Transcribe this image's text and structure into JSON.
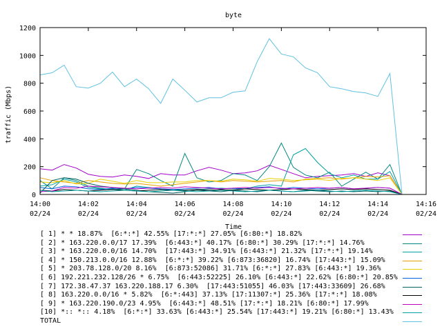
{
  "chart_data": {
    "type": "line",
    "title": "byte",
    "xlabel": "Time",
    "ylabel": "traffic (Mbps)",
    "ylim": [
      0,
      1200
    ],
    "yticks": [
      "0",
      "200",
      "400",
      "600",
      "800",
      "1000",
      "1200"
    ],
    "xlim": [
      "14:00",
      "14:16"
    ],
    "xticks": [
      {
        "time": "14:00",
        "date": "02/24"
      },
      {
        "time": "14:02",
        "date": "02/24"
      },
      {
        "time": "14:04",
        "date": "02/24"
      },
      {
        "time": "14:06",
        "date": "02/24"
      },
      {
        "time": "14:08",
        "date": "02/24"
      },
      {
        "time": "14:10",
        "date": "02/24"
      },
      {
        "time": "14:12",
        "date": "02/24"
      },
      {
        "time": "14:14",
        "date": "02/24"
      },
      {
        "time": "14:16",
        "date": "02/24"
      }
    ],
    "x": [
      "14:00",
      "14:00:30",
      "14:01",
      "14:01:30",
      "14:02",
      "14:02:30",
      "14:03",
      "14:03:30",
      "14:04",
      "14:04:30",
      "14:05",
      "14:05:30",
      "14:06",
      "14:06:30",
      "14:07",
      "14:07:30",
      "14:08",
      "14:08:30",
      "14:09",
      "14:09:30",
      "14:10",
      "14:10:30",
      "14:11",
      "14:11:30",
      "14:12",
      "14:12:30",
      "14:13",
      "14:13:30",
      "14:14",
      "14:14:30",
      "14:15"
    ],
    "grid": false,
    "legend_position": "bottom",
    "series": [
      {
        "name": "[ 1] * * 18.87%  [6:*:*] 42.55% [17:*:*] 27.05% [6:80:*] 18.82%",
        "color": "#a000c8",
        "values": [
          185,
          175,
          215,
          190,
          145,
          130,
          125,
          140,
          130,
          115,
          150,
          140,
          140,
          170,
          195,
          175,
          150,
          155,
          170,
          210,
          180,
          150,
          120,
          130,
          135,
          140,
          150,
          130,
          155,
          135,
          0
        ]
      },
      {
        "name": "[ 2] * 163.220.0.0/17 17.39%  [6:443:*] 40.17% [6:80:*] 30.29% [17:*:*] 14.76%",
        "color": "#00887e",
        "values": [
          100,
          40,
          120,
          100,
          60,
          45,
          35,
          40,
          180,
          150,
          100,
          60,
          295,
          120,
          90,
          100,
          150,
          140,
          100,
          200,
          370,
          195,
          140,
          120,
          160,
          60,
          110,
          160,
          110,
          215,
          0
        ]
      },
      {
        "name": "[ 3] * 163.220.0.0/16 14.70%  [17:443:*] 34.91% [6:443:*] 21.32% [17:*:*] 19.14%",
        "color": "#00a0a0",
        "values": [
          60,
          70,
          110,
          90,
          50,
          40,
          40,
          30,
          60,
          50,
          40,
          35,
          30,
          35,
          40,
          45,
          40,
          40,
          60,
          70,
          60,
          285,
          330,
          230,
          150,
          120,
          140,
          110,
          110,
          165,
          0
        ]
      },
      {
        "name": "[ 4] * 150.213.0.0/16 12.88%  [6:*:*] 39.22% [6:873:36820] 16.74% [17:443:*] 15.09%",
        "color": "#e8a000",
        "values": [
          120,
          100,
          90,
          80,
          100,
          90,
          80,
          75,
          80,
          70,
          60,
          70,
          80,
          90,
          100,
          90,
          100,
          95,
          90,
          95,
          100,
          90,
          110,
          115,
          120,
          110,
          120,
          130,
          125,
          135,
          0
        ]
      },
      {
        "name": "[ 5] * 203.78.128.0/20 8.16%  [6:873:52086] 31.71% [6:*:*] 27.83% [6:443:*] 19.36%",
        "color": "#e8d000",
        "values": [
          90,
          85,
          100,
          75,
          80,
          110,
          95,
          80,
          100,
          85,
          85,
          90,
          90,
          100,
          100,
          95,
          110,
          105,
          95,
          115,
          110,
          100,
          105,
          110,
          100,
          115,
          120,
          110,
          100,
          120,
          0
        ]
      },
      {
        "name": "[ 6] 192.221.232.128/26 * 6.75%  [6:443:52225] 26.10% [6:443:*] 22.62% [6:80:*] 20.85%",
        "color": "#0060e0",
        "values": [
          50,
          40,
          60,
          55,
          40,
          35,
          45,
          40,
          50,
          45,
          40,
          35,
          40,
          45,
          50,
          40,
          45,
          40,
          50,
          55,
          40,
          50,
          45,
          40,
          45,
          50,
          40,
          45,
          50,
          45,
          0
        ]
      },
      {
        "name": "[ 7] 172.38.47.37 163.220.188.17 6.30%  [17:443:51055] 46.03% [17:443:33609] 26.68%",
        "color": "#006060",
        "values": [
          10,
          100,
          120,
          110,
          80,
          60,
          50,
          40,
          30,
          20,
          15,
          10,
          20,
          30,
          25,
          20,
          30,
          25,
          20,
          30,
          25,
          20,
          30,
          25,
          20,
          25,
          20,
          25,
          20,
          25,
          0
        ]
      },
      {
        "name": "[ 8] 163.220.0.0/16 * 5.82%  [6:*:443] 37.13% [17:11307:*] 25.36% [17:*:*] 18.08%",
        "color": "#000000",
        "values": [
          30,
          25,
          35,
          30,
          25,
          30,
          35,
          30,
          25,
          30,
          35,
          30,
          30,
          35,
          30,
          35,
          30,
          40,
          35,
          30,
          35,
          40,
          35,
          30,
          35,
          40,
          35,
          40,
          35,
          30,
          0
        ]
      },
      {
        "name": "[ 9] * 163.220.190.0/23 4.95%  [6:443:*] 48.51% [17:*:*] 18.21% [6:80:*] 17.99%",
        "color": "#c000c0",
        "values": [
          20,
          25,
          50,
          45,
          60,
          55,
          50,
          45,
          40,
          45,
          50,
          45,
          55,
          50,
          45,
          40,
          45,
          50,
          45,
          50,
          45,
          40,
          45,
          50,
          45,
          50,
          40,
          45,
          50,
          45,
          0
        ]
      },
      {
        "name": "[10] *:: *:: 4.18%  [6:*:*] 33.63% [6:443:*] 25.54% [17:443:*] 19.21% [6:80:*] 13.43%",
        "color": "#00a0a0",
        "values": [
          30,
          20,
          25,
          30,
          25,
          20,
          25,
          30,
          25,
          20,
          25,
          30,
          25,
          20,
          25,
          30,
          25,
          20,
          25,
          30,
          25,
          20,
          25,
          30,
          25,
          20,
          25,
          30,
          25,
          20,
          0
        ]
      },
      {
        "name": "TOTAL",
        "color": "#60c0e0",
        "values": [
          860,
          875,
          930,
          775,
          765,
          800,
          880,
          775,
          830,
          760,
          655,
          830,
          750,
          665,
          695,
          695,
          735,
          745,
          955,
          1120,
          1010,
          990,
          910,
          875,
          775,
          760,
          740,
          730,
          705,
          870,
          0
        ]
      }
    ]
  }
}
